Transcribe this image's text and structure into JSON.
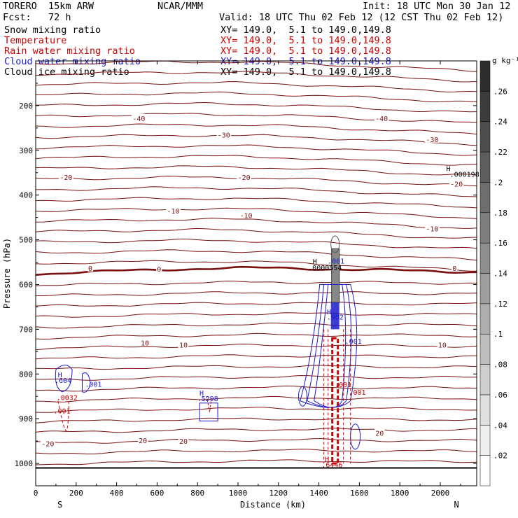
{
  "header": {
    "model": "TORERO  15km ARW",
    "center": "NCAR/MMM",
    "init": "Init: 18 UTC Mon 30 Jan 12",
    "fcst": "Fcst:   72 h",
    "valid": "Valid: 18 UTC Thu 02 Feb 12 (12 CST Thu 02 Feb 12)"
  },
  "fields": [
    {
      "name": "Snow mixing ratio",
      "xy": "XY= 149.0,  5.1 to 149.0,149.8",
      "color": "#000000"
    },
    {
      "name": "Temperature",
      "xy": "XY= 149.0,  5.1 to 149.0,149.8",
      "color": "#cc0000"
    },
    {
      "name": "Rain water mixing ratio",
      "xy": "XY= 149.0,  5.1 to 149.0,149.8",
      "color": "#cc0000"
    },
    {
      "name": "Cloud water mixing ratio",
      "xy": "XY= 149.0,  5.1 to 149.0,149.8",
      "color": "#1a1acc"
    },
    {
      "name": "Cloud ice mixing ratio",
      "xy": "XY= 149.0,  5.1 to 149.0,149.8",
      "color": "#000000"
    }
  ],
  "chart_data": {
    "type": "contour-cross-section",
    "xlabel": "Distance (km)",
    "ylabel": "Pressure (hPa)",
    "xlim": [
      0,
      2180
    ],
    "ylim": [
      1050,
      100
    ],
    "x_ticks": [
      0,
      200,
      400,
      600,
      800,
      1000,
      1200,
      1400,
      1600,
      1800,
      2000
    ],
    "y_ticks": [
      200,
      300,
      400,
      500,
      600,
      700,
      800,
      900,
      1000
    ],
    "x_end_labels": {
      "left": "S",
      "right": "N"
    },
    "colorbar": {
      "unit": "g kg⁻¹",
      "levels": [
        0.02,
        0.04,
        0.06,
        0.08,
        0.1,
        0.12,
        0.14,
        0.16,
        0.18,
        0.2,
        0.22,
        0.24,
        0.26
      ],
      "labels": [
        ".02",
        ".04",
        ".06",
        ".08",
        ".1",
        ".12",
        ".14",
        ".16",
        ".18",
        ".2",
        ".22",
        ".24",
        ".26"
      ]
    },
    "temperature_isotherm_labels": [
      {
        "text": "-40",
        "x": 510,
        "p": 228
      },
      {
        "text": "-40",
        "x": 1710,
        "p": 228
      },
      {
        "text": "-30",
        "x": 930,
        "p": 265
      },
      {
        "text": "-30",
        "x": 1960,
        "p": 275
      },
      {
        "text": "-20",
        "x": 150,
        "p": 360
      },
      {
        "text": "-20",
        "x": 1030,
        "p": 360
      },
      {
        "text": "-20",
        "x": 2080,
        "p": 375
      },
      {
        "text": "-10",
        "x": 680,
        "p": 435
      },
      {
        "text": "-10",
        "x": 1040,
        "p": 445
      },
      {
        "text": "-10",
        "x": 1960,
        "p": 475
      },
      {
        "text": "0",
        "x": 610,
        "p": 565
      },
      {
        "text": "0",
        "x": 2070,
        "p": 563
      },
      {
        "text": "10",
        "x": 540,
        "p": 730
      },
      {
        "text": "10",
        "x": 730,
        "p": 735
      },
      {
        "text": "10",
        "x": 2010,
        "p": 735
      },
      {
        "text": "20",
        "x": 530,
        "p": 948
      },
      {
        "text": "20",
        "x": 730,
        "p": 950
      },
      {
        "text": "20",
        "x": 1700,
        "p": 932
      },
      {
        "text": "-20",
        "x": 60,
        "p": 955
      },
      {
        "text": "0",
        "x": 270,
        "p": 563
      }
    ],
    "value_labels": [
      {
        "text": "H",
        "x": 1380,
        "p": 548,
        "color": "#000000"
      },
      {
        "text": ".0000554",
        "x": 1430,
        "p": 562,
        "color": "#000000"
      },
      {
        "text": ".001",
        "x": 1485,
        "p": 547,
        "color": "#1a1acc"
      },
      {
        "text": "H",
        "x": 2040,
        "p": 340,
        "color": "#000000"
      },
      {
        "text": ".000198",
        "x": 2120,
        "p": 353,
        "color": "#000000"
      },
      {
        "text": "H",
        "x": 1450,
        "p": 660,
        "color": "#1a1acc"
      },
      {
        "text": ".902",
        "x": 1480,
        "p": 672,
        "color": "#1a1acc"
      },
      {
        "text": ".001",
        "x": 1570,
        "p": 726,
        "color": "#1a1acc"
      },
      {
        "text": ".001",
        "x": 1520,
        "p": 823,
        "color": "#cc0000"
      },
      {
        "text": ".001",
        "x": 1590,
        "p": 840,
        "color": "#cc0000"
      },
      {
        "text": "H",
        "x": 120,
        "p": 801,
        "color": "#1a1acc"
      },
      {
        "text": ".604",
        "x": 135,
        "p": 814,
        "color": "#1a1acc"
      },
      {
        "text": ".001",
        "x": 285,
        "p": 822,
        "color": "#1a1acc"
      },
      {
        "text": ".0032",
        "x": 155,
        "p": 852,
        "color": "#cc0000"
      },
      {
        "text": ".001",
        "x": 130,
        "p": 882,
        "color": "#cc0000"
      },
      {
        "text": "H",
        "x": 820,
        "p": 842,
        "color": "#1a1acc"
      },
      {
        "text": ".5298",
        "x": 850,
        "p": 854,
        "color": "#1a1acc"
      },
      {
        "text": "H",
        "x": 1440,
        "p": 990,
        "color": "#cc0000"
      },
      {
        "text": ".6446",
        "x": 1465,
        "p": 1002,
        "color": "#cc0000"
      }
    ]
  }
}
